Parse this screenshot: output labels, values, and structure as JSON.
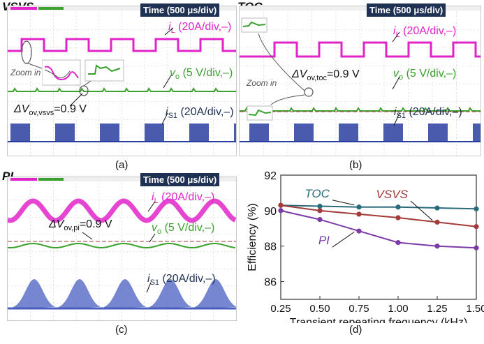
{
  "panels": {
    "a": {
      "title": "VSVS",
      "time": "Time (500 μs/div)",
      "caption": "(a)",
      "zoom": "Zoom in",
      "il": {
        "sym": "i",
        "sub": "L",
        "rest": " (20A/div,–)"
      },
      "vo": {
        "sym": "v",
        "sub": "o",
        "rest": " (5 V/div,–)"
      },
      "is1": {
        "sym": "i",
        "sub": "S1",
        "rest": " (20A/div,–)"
      },
      "dv": {
        "pre": "ΔV",
        "sub": "ov,vsvs",
        "rest": "=0.9 V"
      }
    },
    "b": {
      "title": "TOC",
      "time": "Time (500 μs/div)",
      "caption": "(b)",
      "zoom": "Zoom in",
      "il": {
        "sym": "i",
        "sub": "L",
        "rest": " (20A/div,–)"
      },
      "vo": {
        "sym": "v",
        "sub": "o",
        "rest": " (5 V/div,–)"
      },
      "is1": {
        "sym": "i",
        "sub": "S1",
        "rest": " (20A/div,–)"
      },
      "dv": {
        "pre": "ΔV",
        "sub": "ov,toc",
        "rest": "=0.9 V"
      }
    },
    "c": {
      "title": "PI",
      "time": "Time (500 μs/div)",
      "caption": "(c)",
      "il": {
        "sym": "i",
        "sub": "L",
        "rest": " (20A/div,–)"
      },
      "vo": {
        "sym": "v",
        "sub": "o",
        "rest": " (5 V/div,–)"
      },
      "is1": {
        "sym": "i",
        "sub": "S1",
        "rest": " (20A/div,–)"
      },
      "dv": {
        "pre": "ΔV",
        "sub": "ov,pi",
        "rest": "=0.9 V"
      }
    },
    "d": {
      "caption": "(d)"
    }
  },
  "colors": {
    "magenta": "#e024c8",
    "green": "#3aa12c",
    "navy": "#1f3253",
    "teal": "#2a6b7b",
    "red": "#a33a3a",
    "purple": "#7b3aa8"
  },
  "chart_data": {
    "type": "line",
    "xlabel": "Transient repeating frequency (kHz)",
    "ylabel": "Efficiency (%)",
    "x": [
      0.25,
      0.5,
      0.75,
      1.0,
      1.25,
      1.5
    ],
    "xticks": [
      "0.25",
      "0.50",
      "0.75",
      "1.00",
      "1.25",
      "1.50"
    ],
    "yticks": [
      "86",
      "88",
      "90",
      "92"
    ],
    "xlim": [
      0.25,
      1.5
    ],
    "ylim": [
      85,
      92
    ],
    "series": [
      {
        "name": "TOC",
        "color": "#2a6b7b",
        "values": [
          90.3,
          90.25,
          90.2,
          90.2,
          90.15,
          90.1
        ]
      },
      {
        "name": "VSVS",
        "color": "#a33a3a",
        "values": [
          90.3,
          90.0,
          89.8,
          89.6,
          89.35,
          89.1
        ]
      },
      {
        "name": "PI",
        "color": "#7b3aa8",
        "values": [
          90.0,
          89.5,
          88.85,
          88.2,
          88.0,
          87.9
        ]
      }
    ]
  }
}
